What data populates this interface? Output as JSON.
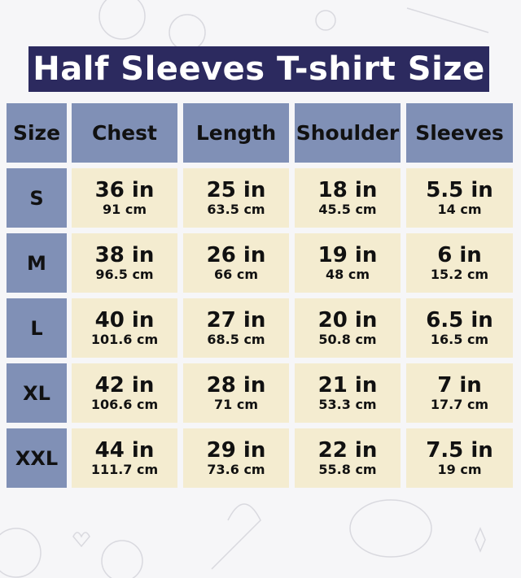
{
  "title": "Half Sleeves T-shirt Size",
  "colors": {
    "title_bg": "#2c2a5f",
    "header_bg": "#8090b6",
    "value_bg": "#f4ecd0"
  },
  "headers": [
    "Size",
    "Chest",
    "Length",
    "Shoulder",
    "Sleeves"
  ],
  "rows": [
    {
      "size": "S",
      "values": [
        {
          "in": "36 in",
          "cm": "91 cm"
        },
        {
          "in": "25 in",
          "cm": "63.5 cm"
        },
        {
          "in": "18 in",
          "cm": "45.5 cm"
        },
        {
          "in": "5.5 in",
          "cm": "14 cm"
        }
      ]
    },
    {
      "size": "M",
      "values": [
        {
          "in": "38 in",
          "cm": "96.5 cm"
        },
        {
          "in": "26 in",
          "cm": "66 cm"
        },
        {
          "in": "19 in",
          "cm": "48 cm"
        },
        {
          "in": "6 in",
          "cm": "15.2 cm"
        }
      ]
    },
    {
      "size": "L",
      "values": [
        {
          "in": "40 in",
          "cm": "101.6 cm"
        },
        {
          "in": "27 in",
          "cm": "68.5 cm"
        },
        {
          "in": "20 in",
          "cm": "50.8 cm"
        },
        {
          "in": "6.5 in",
          "cm": "16.5 cm"
        }
      ]
    },
    {
      "size": "XL",
      "values": [
        {
          "in": "42 in",
          "cm": "106.6 cm"
        },
        {
          "in": "28 in",
          "cm": "71 cm"
        },
        {
          "in": "21 in",
          "cm": "53.3 cm"
        },
        {
          "in": "7 in",
          "cm": "17.7 cm"
        }
      ]
    },
    {
      "size": "XXL",
      "values": [
        {
          "in": "44 in",
          "cm": "111.7 cm"
        },
        {
          "in": "29 in",
          "cm": "73.6 cm"
        },
        {
          "in": "22 in",
          "cm": "55.8 cm"
        },
        {
          "in": "7.5 in",
          "cm": "19 cm"
        }
      ]
    }
  ]
}
